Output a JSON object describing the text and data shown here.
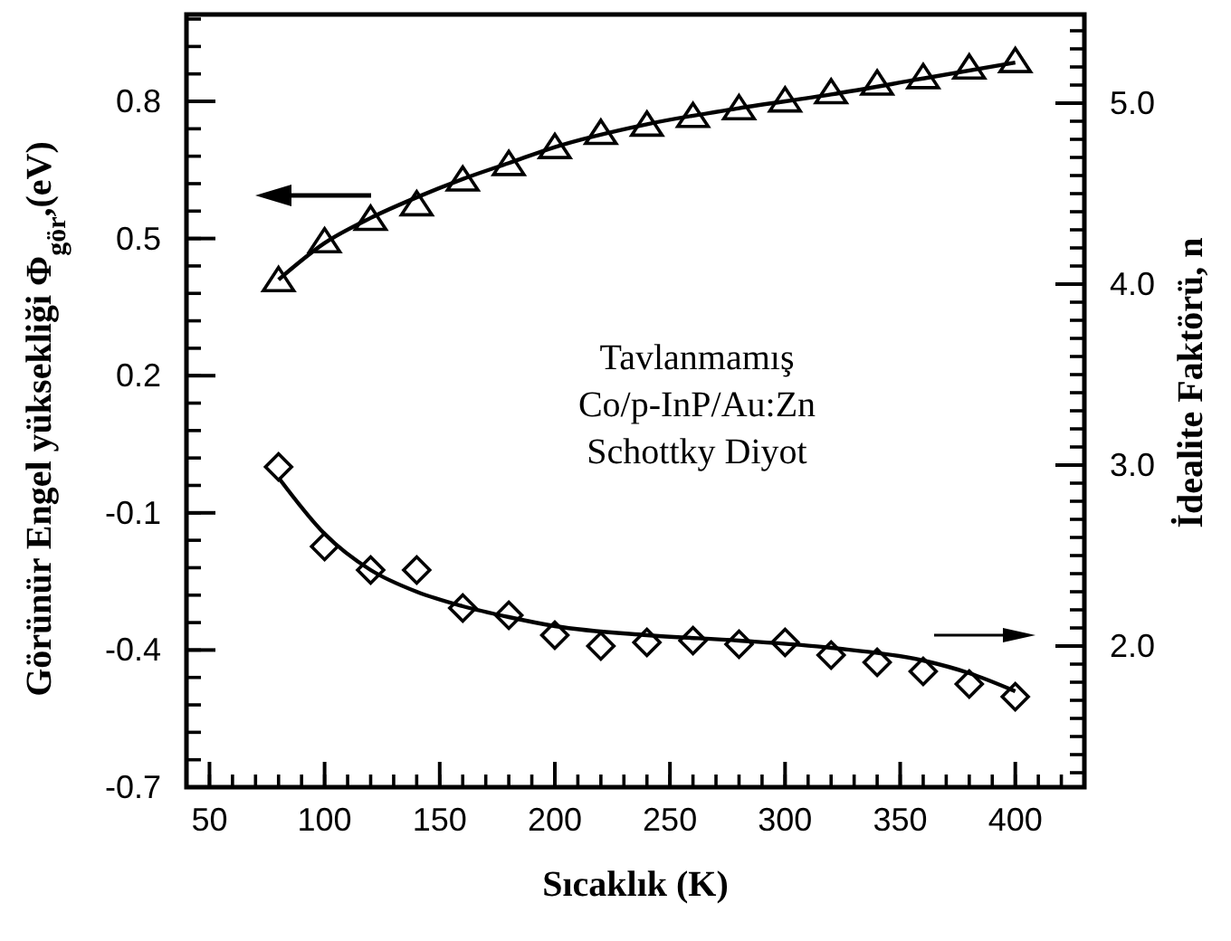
{
  "chart_data": {
    "type": "scatter",
    "xlabel": "Sıcaklık (K)",
    "ylabel": "Görünür Engel yüksekliği Φ$_{gör}$,(eV)",
    "y2label": "İdealite Faktörü, n",
    "x": [
      80,
      100,
      120,
      140,
      160,
      180,
      200,
      220,
      240,
      260,
      280,
      300,
      320,
      340,
      360,
      380,
      400
    ],
    "xlim": [
      40,
      430
    ],
    "xticks": [
      50,
      100,
      150,
      200,
      250,
      300,
      350,
      400
    ],
    "ylim": [
      -0.7,
      0.99
    ],
    "yticks": [
      -0.7,
      -0.4,
      -0.1,
      0.2,
      0.5,
      0.8
    ],
    "y2lim": [
      1.22,
      5.49
    ],
    "y2ticks": [
      {
        "value": 2,
        "label": "2.0"
      },
      {
        "value": 3,
        "label": "3.0"
      },
      {
        "value": 4,
        "label": "4.0"
      },
      {
        "value": 5,
        "label": "5.0"
      }
    ],
    "series": [
      {
        "marker": "triangle",
        "color": "#000000",
        "values": [
          0.405,
          0.49,
          0.539,
          0.571,
          0.625,
          0.659,
          0.696,
          0.727,
          0.745,
          0.764,
          0.781,
          0.798,
          0.816,
          0.835,
          0.849,
          0.87,
          0.884
        ]
      },
      {
        "type": "line",
        "marker": "none",
        "color": "#000000",
        "x": [
          80,
          100,
          120,
          140,
          160,
          180,
          200,
          240,
          280,
          320,
          360,
          400
        ],
        "values": [
          0.41,
          0.49,
          0.545,
          0.59,
          0.63,
          0.665,
          0.7,
          0.75,
          0.785,
          0.815,
          0.85,
          0.885
        ]
      },
      {
        "marker": "diamond",
        "axis": "y2",
        "color": "#000000",
        "values": [
          2.99,
          2.55,
          2.42,
          2.42,
          2.21,
          2.17,
          2.06,
          2.0,
          2.02,
          2.03,
          2.01,
          2.02,
          1.95,
          1.91,
          1.86,
          1.79,
          1.72
        ]
      },
      {
        "type": "line",
        "marker": "none",
        "axis": "y2",
        "color": "#000000",
        "x": [
          80,
          100,
          120,
          140,
          160,
          180,
          200,
          240,
          280,
          320,
          360,
          380,
          400
        ],
        "values": [
          2.93,
          2.62,
          2.42,
          2.3,
          2.22,
          2.16,
          2.11,
          2.06,
          2.03,
          1.99,
          1.92,
          1.85,
          1.75
        ]
      }
    ],
    "annotations": [
      "Tavlanmamış",
      "Co/p-InP/Au:Zn",
      "Schottky Diyot"
    ],
    "grid": false
  }
}
